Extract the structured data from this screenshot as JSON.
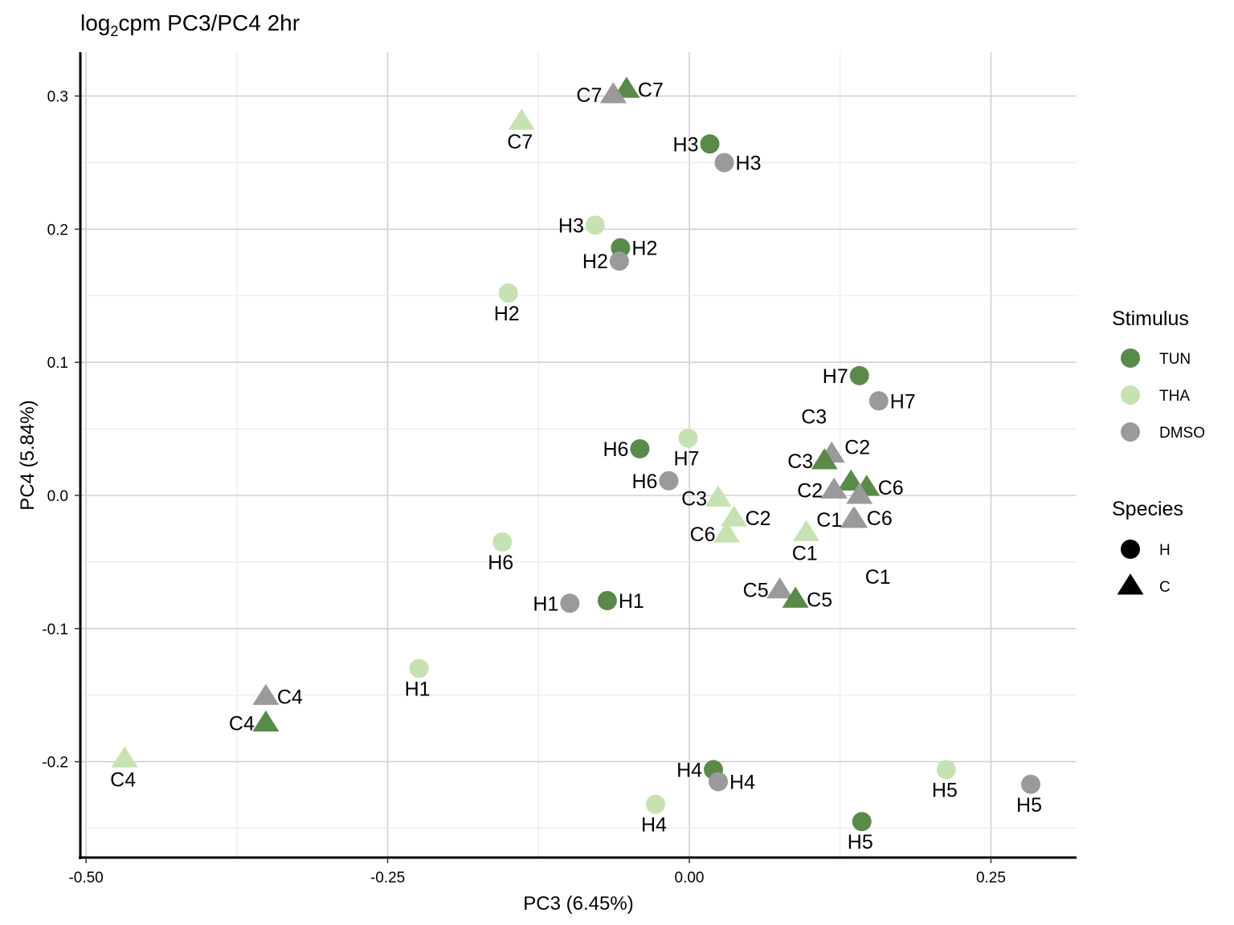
{
  "chart_data": {
    "type": "scatter",
    "title": "log2cpm PC3/PC4 2hr",
    "title_parts": {
      "pre": "log",
      "sub": "2",
      "post": "cpm PC3/PC4 2hr"
    },
    "xlabel": "PC3 (6.45%)",
    "ylabel": "PC4 (5.84%)",
    "xlim": [
      -0.5,
      0.32
    ],
    "ylim": [
      -0.27,
      0.33
    ],
    "x_ticks": [
      -0.5,
      -0.25,
      0.0,
      0.25
    ],
    "x_tick_labels": [
      "-0.50",
      "-0.25",
      "0.00",
      "0.25"
    ],
    "y_ticks": [
      -0.2,
      -0.1,
      0.0,
      0.1,
      0.2,
      0.3
    ],
    "y_tick_labels": [
      "-0.2",
      "-0.1",
      "0.0",
      "0.1",
      "0.2",
      "0.3"
    ],
    "grid": true,
    "colors": {
      "TUN": "#5a8a4a",
      "THA": "#c6e2b3",
      "DMSO": "#9a9a9a"
    },
    "legend": {
      "placement": "right",
      "stimulus_title": "Stimulus",
      "stimulus_items": [
        "TUN",
        "THA",
        "DMSO"
      ],
      "species_title": "Species",
      "species_items": [
        {
          "label": "H",
          "shape": "circle"
        },
        {
          "label": "C",
          "shape": "triangle"
        }
      ]
    },
    "points": [
      {
        "label": "C7",
        "species": "C",
        "stimulus": "TUN",
        "x": -0.052,
        "y": 0.305,
        "lpos": "right"
      },
      {
        "label": "C7",
        "species": "C",
        "stimulus": "DMSO",
        "x": -0.063,
        "y": 0.301,
        "lpos": "left"
      },
      {
        "label": "C7",
        "species": "C",
        "stimulus": "THA",
        "x": -0.139,
        "y": 0.281,
        "lpos": "below"
      },
      {
        "label": "H3",
        "species": "H",
        "stimulus": "TUN",
        "x": 0.017,
        "y": 0.264,
        "lpos": "left"
      },
      {
        "label": "H3",
        "species": "H",
        "stimulus": "DMSO",
        "x": 0.029,
        "y": 0.25,
        "lpos": "right"
      },
      {
        "label": "H3",
        "species": "H",
        "stimulus": "THA",
        "x": -0.078,
        "y": 0.203,
        "lpos": "left"
      },
      {
        "label": "H2",
        "species": "H",
        "stimulus": "TUN",
        "x": -0.057,
        "y": 0.186,
        "lpos": "right"
      },
      {
        "label": "H2",
        "species": "H",
        "stimulus": "DMSO",
        "x": -0.058,
        "y": 0.176,
        "lpos": "left"
      },
      {
        "label": "H2",
        "species": "H",
        "stimulus": "THA",
        "x": -0.15,
        "y": 0.152,
        "lpos": "below"
      },
      {
        "label": "H7",
        "species": "H",
        "stimulus": "TUN",
        "x": 0.141,
        "y": 0.09,
        "lpos": "left"
      },
      {
        "label": "H7",
        "species": "H",
        "stimulus": "DMSO",
        "x": 0.157,
        "y": 0.071,
        "lpos": "right"
      },
      {
        "label": "H7",
        "species": "H",
        "stimulus": "THA",
        "x": -0.001,
        "y": 0.043,
        "lpos": "below"
      },
      {
        "label": "H6",
        "species": "H",
        "stimulus": "TUN",
        "x": -0.041,
        "y": 0.035,
        "lpos": "left"
      },
      {
        "label": "H6",
        "species": "H",
        "stimulus": "DMSO",
        "x": -0.017,
        "y": 0.011,
        "lpos": "left"
      },
      {
        "label": "H6",
        "species": "H",
        "stimulus": "THA",
        "x": -0.155,
        "y": -0.035,
        "lpos": "below"
      },
      {
        "label": "C3",
        "species": "C",
        "stimulus": "DMSO",
        "x": 0.118,
        "y": 0.031,
        "lpos": "above"
      },
      {
        "label": "C3",
        "species": "C",
        "stimulus": "TUN",
        "x": 0.112,
        "y": 0.026,
        "lpos": "left"
      },
      {
        "label": "C3",
        "species": "C",
        "stimulus": "THA",
        "x": 0.024,
        "y": -0.002,
        "lpos": "left"
      },
      {
        "label": "C2",
        "species": "C",
        "stimulus": "TUN",
        "x": 0.134,
        "y": 0.01,
        "lpos": "above-right"
      },
      {
        "label": "C2",
        "species": "C",
        "stimulus": "DMSO",
        "x": 0.12,
        "y": 0.004,
        "lpos": "left"
      },
      {
        "label": "C2",
        "species": "C",
        "stimulus": "THA",
        "x": 0.037,
        "y": -0.017,
        "lpos": "right"
      },
      {
        "label": "C6",
        "species": "C",
        "stimulus": "TUN",
        "x": 0.147,
        "y": 0.006,
        "lpos": "right"
      },
      {
        "label": "C6",
        "species": "C",
        "stimulus": "DMSO",
        "x": 0.141,
        "y": 0.0,
        "lpos": "below-right"
      },
      {
        "label": "C6",
        "species": "C",
        "stimulus": "THA",
        "x": 0.031,
        "y": -0.029,
        "lpos": "left"
      },
      {
        "label": "C1",
        "species": "C",
        "stimulus": "DMSO",
        "x": 0.136,
        "y": -0.018,
        "lpos": "left"
      },
      {
        "label": "C1",
        "species": "C",
        "stimulus": "THA",
        "x": 0.097,
        "y": -0.028,
        "lpos": "below"
      },
      {
        "label": "C1",
        "species": "C",
        "stimulus": "DMSO",
        "x": 0.137,
        "y": -0.018,
        "lpos": "below-far"
      },
      {
        "label": "H1",
        "species": "H",
        "stimulus": "DMSO",
        "x": -0.099,
        "y": -0.081,
        "lpos": "left"
      },
      {
        "label": "H1",
        "species": "H",
        "stimulus": "TUN",
        "x": -0.068,
        "y": -0.079,
        "lpos": "right"
      },
      {
        "label": "C5",
        "species": "C",
        "stimulus": "DMSO",
        "x": 0.075,
        "y": -0.071,
        "lpos": "left"
      },
      {
        "label": "C5",
        "species": "C",
        "stimulus": "TUN",
        "x": 0.088,
        "y": -0.078,
        "lpos": "right"
      },
      {
        "label": "H1",
        "species": "H",
        "stimulus": "THA",
        "x": -0.224,
        "y": -0.13,
        "lpos": "below"
      },
      {
        "label": "C4",
        "species": "C",
        "stimulus": "DMSO",
        "x": -0.351,
        "y": -0.151,
        "lpos": "right"
      },
      {
        "label": "C4",
        "species": "C",
        "stimulus": "TUN",
        "x": -0.351,
        "y": -0.171,
        "lpos": "left"
      },
      {
        "label": "C4",
        "species": "C",
        "stimulus": "THA",
        "x": -0.468,
        "y": -0.198,
        "lpos": "below"
      },
      {
        "label": "H4",
        "species": "H",
        "stimulus": "TUN",
        "x": 0.02,
        "y": -0.206,
        "lpos": "left"
      },
      {
        "label": "H4",
        "species": "H",
        "stimulus": "DMSO",
        "x": 0.024,
        "y": -0.215,
        "lpos": "right"
      },
      {
        "label": "H4",
        "species": "H",
        "stimulus": "THA",
        "x": -0.028,
        "y": -0.232,
        "lpos": "below"
      },
      {
        "label": "H5",
        "species": "H",
        "stimulus": "THA",
        "x": 0.213,
        "y": -0.206,
        "lpos": "below"
      },
      {
        "label": "H5",
        "species": "H",
        "stimulus": "DMSO",
        "x": 0.283,
        "y": -0.217,
        "lpos": "below"
      },
      {
        "label": "H5",
        "species": "H",
        "stimulus": "TUN",
        "x": 0.143,
        "y": -0.245,
        "lpos": "below"
      }
    ]
  }
}
